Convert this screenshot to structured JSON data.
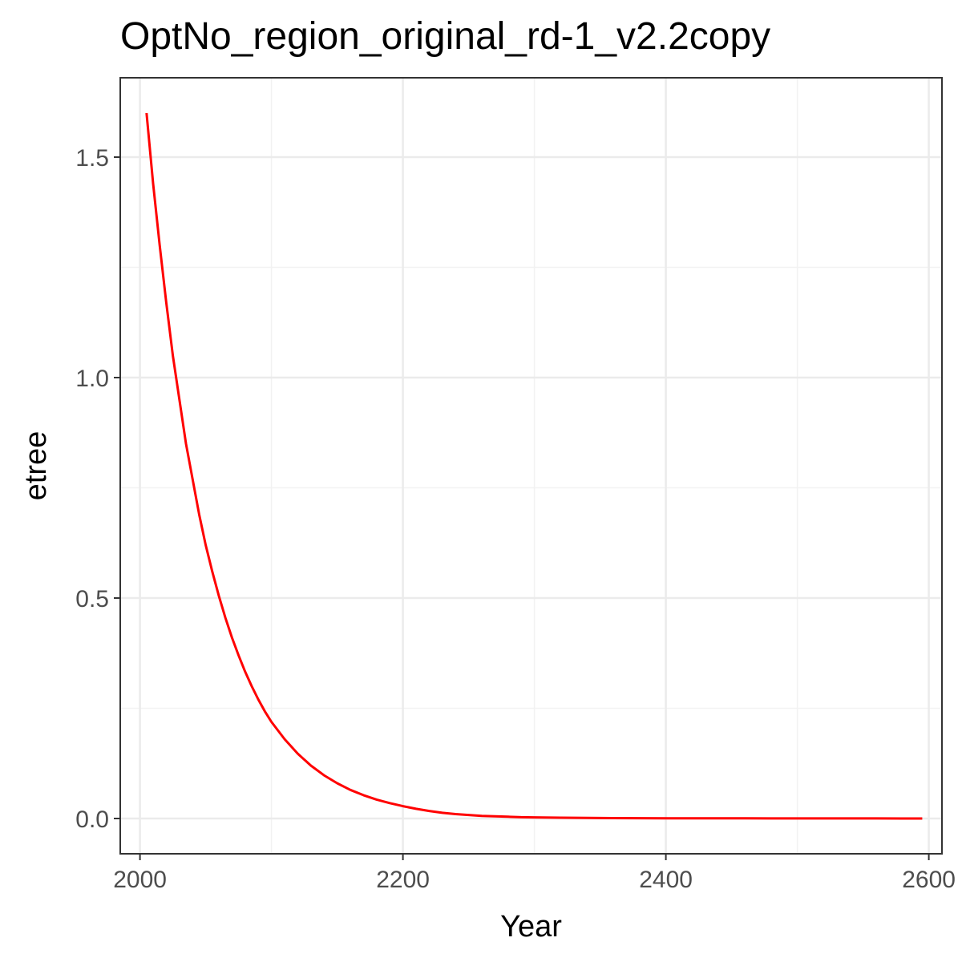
{
  "chart_data": {
    "type": "line",
    "title": "OptNo_region_original_rd-1_v2.2copy",
    "xlabel": "Year",
    "ylabel": "etree",
    "xlim": [
      1985,
      2610
    ],
    "ylim": [
      -0.08,
      1.68
    ],
    "x_ticks": [
      2000,
      2200,
      2400,
      2600
    ],
    "y_ticks": [
      0.0,
      0.5,
      1.0,
      1.5
    ],
    "x_tick_labels": [
      "2000",
      "2200",
      "2400",
      "2600"
    ],
    "y_tick_labels": [
      "0.0",
      "0.5",
      "1.0",
      "1.5"
    ],
    "grid": true,
    "legend": "none",
    "series": [
      {
        "color": "#ff0000",
        "x": [
          2005,
          2010,
          2015,
          2020,
          2025,
          2030,
          2035,
          2040,
          2045,
          2050,
          2055,
          2060,
          2065,
          2070,
          2075,
          2080,
          2085,
          2090,
          2095,
          2100,
          2110,
          2120,
          2130,
          2140,
          2150,
          2160,
          2170,
          2180,
          2190,
          2200,
          2210,
          2220,
          2230,
          2240,
          2250,
          2260,
          2270,
          2280,
          2290,
          2300,
          2320,
          2340,
          2360,
          2380,
          2400,
          2420,
          2440,
          2460,
          2480,
          2500,
          2520,
          2540,
          2560,
          2580,
          2595
        ],
        "y": [
          1.6,
          1.44,
          1.3,
          1.17,
          1.05,
          0.95,
          0.85,
          0.77,
          0.69,
          0.62,
          0.56,
          0.505,
          0.455,
          0.41,
          0.37,
          0.333,
          0.3,
          0.27,
          0.243,
          0.219,
          0.18,
          0.147,
          0.12,
          0.098,
          0.08,
          0.065,
          0.053,
          0.043,
          0.035,
          0.028,
          0.022,
          0.017,
          0.013,
          0.01,
          0.008,
          0.006,
          0.005,
          0.004,
          0.003,
          0.0025,
          0.0018,
          0.0013,
          0.001,
          0.0008,
          0.0006,
          0.0005,
          0.0004,
          0.0003,
          0.0002,
          0.0002,
          0.0001,
          0.0001,
          0.0001,
          0.0,
          0.0
        ]
      }
    ]
  },
  "colors": {
    "line": "#ff0000",
    "grid_major": "#ebebeb",
    "grid_minor": "#f2f2f2",
    "panel_border": "#333333",
    "tick_label": "#4d4d4d"
  }
}
